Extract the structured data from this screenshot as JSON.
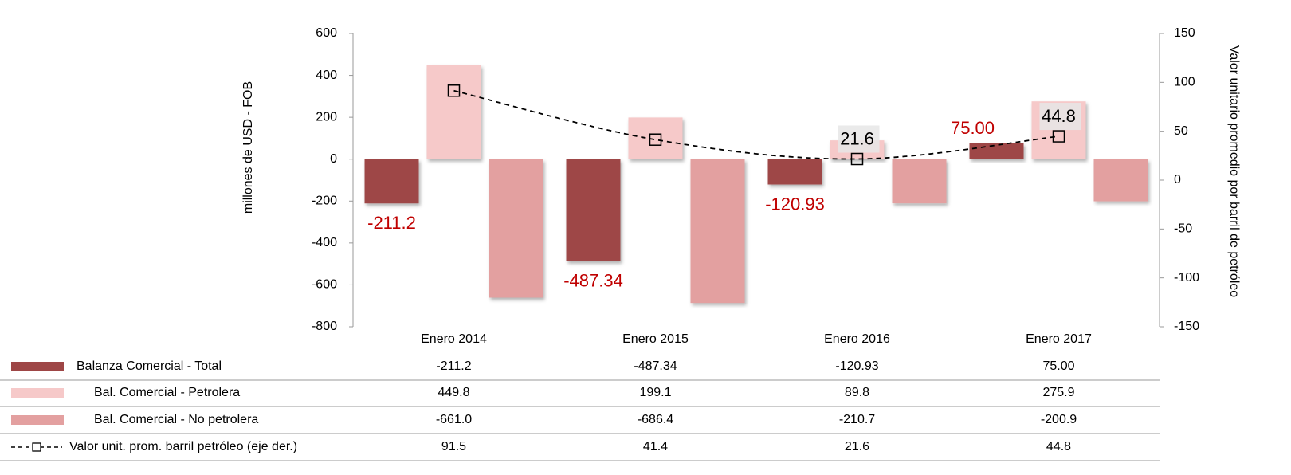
{
  "chart_data": {
    "type": "bar",
    "categories": [
      "Enero 2014",
      "Enero 2015",
      "Enero 2016",
      "Enero 2017"
    ],
    "ylabel": "millones de USD - FOB",
    "y2label": "Valor unitario promedio por barril de petróleo",
    "ylim": [
      -800,
      600
    ],
    "yticks": [
      -800,
      -600,
      -400,
      -200,
      0,
      200,
      400,
      600
    ],
    "y2lim": [
      -150,
      150
    ],
    "y2ticks": [
      -150,
      -100,
      -50,
      0,
      50,
      100,
      150
    ],
    "series": [
      {
        "name": "Balanza Comercial - Total",
        "type": "bar",
        "color": "#9e4646",
        "values": [
          -211.2,
          -487.34,
          -120.93,
          75
        ],
        "value_labels": [
          "-211.2",
          "-487.34",
          "-120.93",
          "75.00"
        ]
      },
      {
        "name": "Bal. Comercial - Petrolera",
        "type": "bar",
        "color": "#f6c9c9",
        "values": [
          449.8,
          199.1,
          89.8,
          275.9
        ],
        "value_labels": [
          "449.8",
          "199.1",
          "89.8",
          "275.9"
        ]
      },
      {
        "name": "Bal. Comercial - No petrolera",
        "type": "bar",
        "color": "#e3a0a0",
        "values": [
          -661.0,
          -686.4,
          -210.7,
          -200.9
        ],
        "value_labels": [
          "-661.0",
          "-686.4",
          "-210.7",
          "-200.9"
        ]
      },
      {
        "name": "Valor unit. prom. barril petróleo (eje der.)",
        "type": "line",
        "axis": "y2",
        "color": "#000000",
        "values": [
          91.5,
          41.4,
          21.6,
          44.8
        ],
        "value_labels": [
          "91.5",
          "41.4",
          "21.6",
          "44.8"
        ]
      }
    ]
  }
}
